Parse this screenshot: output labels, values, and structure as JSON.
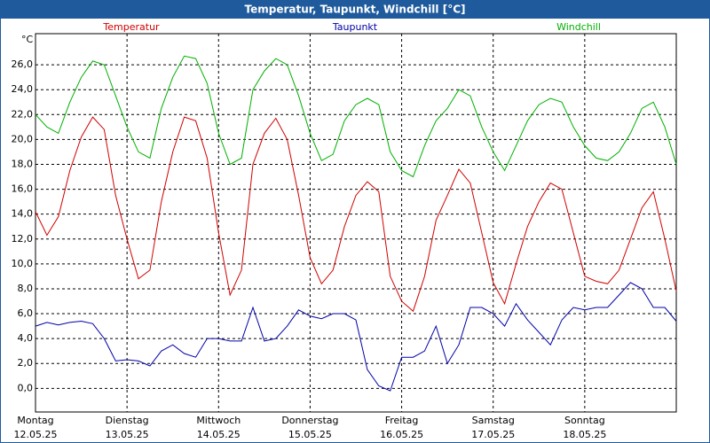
{
  "chart_data": {
    "type": "line",
    "title": "Temperatur, Taupunkt, Windchill [°C]",
    "ylabel": "°C",
    "x": [
      0,
      3,
      6,
      9,
      12,
      15,
      18,
      21,
      24,
      27,
      30,
      33,
      36,
      39,
      42,
      45,
      48,
      51,
      54,
      57,
      60,
      63,
      66,
      69,
      72,
      75,
      78,
      81,
      84,
      87,
      90,
      93,
      96,
      99,
      102,
      105,
      108,
      111,
      114,
      117,
      120,
      123,
      126,
      129,
      132,
      135,
      138,
      141,
      144,
      147,
      150,
      153,
      156,
      159,
      162,
      165,
      168
    ],
    "xlim": [
      0,
      168
    ],
    "xticks": [
      {
        "value": 0,
        "label": "Montag",
        "date": "12.05.25"
      },
      {
        "value": 24,
        "label": "Dienstag",
        "date": "13.05.25"
      },
      {
        "value": 48,
        "label": "Mittwoch",
        "date": "14.05.25"
      },
      {
        "value": 72,
        "label": "Donnerstag",
        "date": "15.05.25"
      },
      {
        "value": 96,
        "label": "Freitag",
        "date": "16.05.25"
      },
      {
        "value": 120,
        "label": "Samstag",
        "date": "17.05.25"
      },
      {
        "value": 144,
        "label": "Sonntag",
        "date": "18.05.25"
      }
    ],
    "ylim": [
      -1.9,
      28.5
    ],
    "yticks": [
      {
        "value": 0,
        "label": "0,0"
      },
      {
        "value": 2,
        "label": "2,0"
      },
      {
        "value": 4,
        "label": "4,0"
      },
      {
        "value": 6,
        "label": "6,0"
      },
      {
        "value": 8,
        "label": "8,0"
      },
      {
        "value": 10,
        "label": "10,0"
      },
      {
        "value": 12,
        "label": "12,0"
      },
      {
        "value": 14,
        "label": "14,0"
      },
      {
        "value": 16,
        "label": "16,0"
      },
      {
        "value": 18,
        "label": "18,0"
      },
      {
        "value": 20,
        "label": "20,0"
      },
      {
        "value": 22,
        "label": "22,0"
      },
      {
        "value": 24,
        "label": "24,0"
      },
      {
        "value": 26,
        "label": "26,0"
      }
    ],
    "grid": true,
    "series": [
      {
        "name": "Temperatur",
        "color": "#d00000",
        "values": [
          14.2,
          12.3,
          13.8,
          17.5,
          20.2,
          21.8,
          20.8,
          15.5,
          12.0,
          8.8,
          9.5,
          15.0,
          19.0,
          21.8,
          21.5,
          18.5,
          12.5,
          7.5,
          9.5,
          18.0,
          20.5,
          21.7,
          20.0,
          15.5,
          10.5,
          8.4,
          9.5,
          13.0,
          15.5,
          16.6,
          15.8,
          9.0,
          7.0,
          6.2,
          9.0,
          13.5,
          15.5,
          17.6,
          16.5,
          12.5,
          8.5,
          6.8,
          10.0,
          13.0,
          15.0,
          16.5,
          16.0,
          12.5,
          9.0,
          8.6,
          8.4,
          9.5,
          12.0,
          14.5,
          15.8,
          12.0,
          7.8
        ]
      },
      {
        "name": "Taupunkt",
        "color": "#0000a8",
        "values": [
          5.0,
          5.3,
          5.1,
          5.3,
          5.4,
          5.2,
          4.0,
          2.2,
          2.3,
          2.2,
          1.8,
          3.0,
          3.5,
          2.8,
          2.5,
          4.0,
          4.0,
          3.8,
          3.8,
          6.5,
          3.8,
          4.0,
          5.0,
          6.3,
          5.8,
          5.6,
          6.0,
          6.0,
          5.5,
          1.5,
          0.2,
          -0.2,
          2.5,
          2.5,
          3.0,
          5.0,
          2.0,
          3.5,
          6.5,
          6.5,
          6.0,
          5.0,
          6.8,
          5.5,
          4.5,
          3.5,
          5.5,
          6.5,
          6.3,
          6.5,
          6.5,
          7.5,
          8.5,
          8.0,
          6.5,
          6.5,
          5.4
        ]
      },
      {
        "name": "Windchill",
        "color": "#00b000",
        "values": [
          22.0,
          21.0,
          20.5,
          23.0,
          25.0,
          26.3,
          26.0,
          23.5,
          21.0,
          19.0,
          18.5,
          22.5,
          25.0,
          26.7,
          26.5,
          24.5,
          20.5,
          18.0,
          18.5,
          24.0,
          25.5,
          26.5,
          26.0,
          23.5,
          20.5,
          18.3,
          18.8,
          21.5,
          22.8,
          23.3,
          22.8,
          19.0,
          17.5,
          17.0,
          19.5,
          21.5,
          22.5,
          24.0,
          23.5,
          21.0,
          19.0,
          17.5,
          19.5,
          21.5,
          22.8,
          23.3,
          23.0,
          21.0,
          19.5,
          18.5,
          18.3,
          19.0,
          20.5,
          22.5,
          23.0,
          21.0,
          18.0
        ]
      }
    ]
  }
}
